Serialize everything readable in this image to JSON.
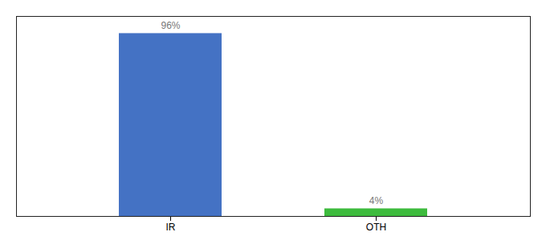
{
  "chart_data": {
    "type": "bar",
    "categories": [
      "IR",
      "OTH"
    ],
    "values": [
      96,
      4
    ],
    "value_labels": [
      "96%",
      "4%"
    ],
    "colors": [
      "#4472c4",
      "#3dbb3d"
    ],
    "ylim": [
      0,
      105
    ],
    "data_labels": true,
    "tick_labels": "x",
    "grid": false
  }
}
